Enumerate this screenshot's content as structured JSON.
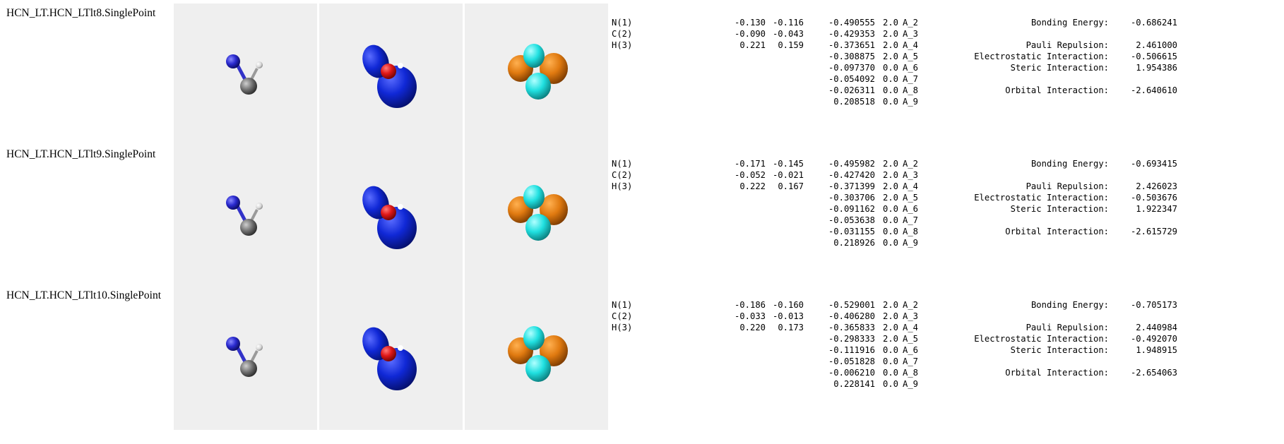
{
  "colors": {
    "panel_bg": "#efefef",
    "nitrogen": "#2a2acf",
    "carbon": "#7a7a7a",
    "hydrogen": "#e8e8e8",
    "density_blue": "#1028d6",
    "density_red": "#e01818",
    "orbital_orange": "#e07a10",
    "orbital_cyan": "#20e0e0"
  },
  "rows": [
    {
      "title": "HCN_LT.HCN_LTlt8.SinglePoint",
      "atoms": [
        {
          "name": "N(1)",
          "q1": "-0.130",
          "q2": "-0.116"
        },
        {
          "name": "C(2)",
          "q1": "-0.090",
          "q2": "-0.043"
        },
        {
          "name": "H(3)",
          "q1": "0.221",
          "q2": "0.159"
        }
      ],
      "orbitals": [
        {
          "energy": "-0.490555",
          "occ": "2.0",
          "label": "A_2"
        },
        {
          "energy": "-0.429353",
          "occ": "2.0",
          "label": "A_3"
        },
        {
          "energy": "-0.373651",
          "occ": "2.0",
          "label": "A_4"
        },
        {
          "energy": "-0.308875",
          "occ": "2.0",
          "label": "A_5"
        },
        {
          "energy": "-0.097370",
          "occ": "0.0",
          "label": "A_6"
        },
        {
          "energy": "-0.054092",
          "occ": "0.0",
          "label": "A_7"
        },
        {
          "energy": "-0.026311",
          "occ": "0.0",
          "label": "A_8"
        },
        {
          "energy": "0.208518",
          "occ": "0.0",
          "label": "A_9"
        }
      ],
      "energies": {
        "bonding_label": "Bonding Energy:",
        "bonding": "-0.686241",
        "pauli_label": "Pauli Repulsion:",
        "pauli": "2.461000",
        "electrostatic_label": "Electrostatic Interaction:",
        "electrostatic": "-0.506615",
        "steric_label": "Steric Interaction:",
        "steric": "1.954386",
        "orbital_label": "Orbital Interaction:",
        "orbital": "-2.640610"
      }
    },
    {
      "title": "HCN_LT.HCN_LTlt9.SinglePoint",
      "atoms": [
        {
          "name": "N(1)",
          "q1": "-0.171",
          "q2": "-0.145"
        },
        {
          "name": "C(2)",
          "q1": "-0.052",
          "q2": "-0.021"
        },
        {
          "name": "H(3)",
          "q1": "0.222",
          "q2": "0.167"
        }
      ],
      "orbitals": [
        {
          "energy": "-0.495982",
          "occ": "2.0",
          "label": "A_2"
        },
        {
          "energy": "-0.427420",
          "occ": "2.0",
          "label": "A_3"
        },
        {
          "energy": "-0.371399",
          "occ": "2.0",
          "label": "A_4"
        },
        {
          "energy": "-0.303706",
          "occ": "2.0",
          "label": "A_5"
        },
        {
          "energy": "-0.091162",
          "occ": "0.0",
          "label": "A_6"
        },
        {
          "energy": "-0.053638",
          "occ": "0.0",
          "label": "A_7"
        },
        {
          "energy": "-0.031155",
          "occ": "0.0",
          "label": "A_8"
        },
        {
          "energy": "0.218926",
          "occ": "0.0",
          "label": "A_9"
        }
      ],
      "energies": {
        "bonding_label": "Bonding Energy:",
        "bonding": "-0.693415",
        "pauli_label": "Pauli Repulsion:",
        "pauli": "2.426023",
        "electrostatic_label": "Electrostatic Interaction:",
        "electrostatic": "-0.503676",
        "steric_label": "Steric Interaction:",
        "steric": "1.922347",
        "orbital_label": "Orbital Interaction:",
        "orbital": "-2.615729"
      }
    },
    {
      "title": "HCN_LT.HCN_LTlt10.SinglePoint",
      "atoms": [
        {
          "name": "N(1)",
          "q1": "-0.186",
          "q2": "-0.160"
        },
        {
          "name": "C(2)",
          "q1": "-0.033",
          "q2": "-0.013"
        },
        {
          "name": "H(3)",
          "q1": "0.220",
          "q2": "0.173"
        }
      ],
      "orbitals": [
        {
          "energy": "-0.529001",
          "occ": "2.0",
          "label": "A_2"
        },
        {
          "energy": "-0.406280",
          "occ": "2.0",
          "label": "A_3"
        },
        {
          "energy": "-0.365833",
          "occ": "2.0",
          "label": "A_4"
        },
        {
          "energy": "-0.298333",
          "occ": "2.0",
          "label": "A_5"
        },
        {
          "energy": "-0.111916",
          "occ": "0.0",
          "label": "A_6"
        },
        {
          "energy": "-0.051828",
          "occ": "0.0",
          "label": "A_7"
        },
        {
          "energy": "-0.006210",
          "occ": "0.0",
          "label": "A_8"
        },
        {
          "energy": "0.228141",
          "occ": "0.0",
          "label": "A_9"
        }
      ],
      "energies": {
        "bonding_label": "Bonding Energy:",
        "bonding": "-0.705173",
        "pauli_label": "Pauli Repulsion:",
        "pauli": "2.440984",
        "electrostatic_label": "Electrostatic Interaction:",
        "electrostatic": "-0.492070",
        "steric_label": "Steric Interaction:",
        "steric": "1.948915",
        "orbital_label": "Orbital Interaction:",
        "orbital": "-2.654063"
      }
    }
  ]
}
